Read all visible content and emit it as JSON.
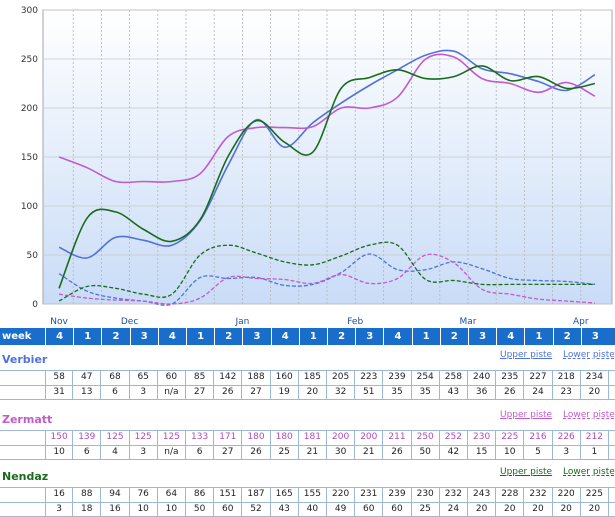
{
  "chart_data": {
    "type": "line",
    "ylim": [
      0,
      300
    ],
    "yticks": [
      "0",
      "50",
      "100",
      "150",
      "200",
      "250",
      "300"
    ],
    "grid": true,
    "months": [
      {
        "label": "Nov",
        "col": 0
      },
      {
        "label": "Dec",
        "col": 2.5
      },
      {
        "label": "Jan",
        "col": 6.5
      },
      {
        "label": "Feb",
        "col": 10.5
      },
      {
        "label": "Mar",
        "col": 14.5
      },
      {
        "label": "Apr",
        "col": 18.5
      }
    ],
    "week_label": "week",
    "weeks": [
      "4",
      "1",
      "2",
      "3",
      "4",
      "1",
      "2",
      "3",
      "4",
      "1",
      "2",
      "3",
      "4",
      "1",
      "2",
      "3",
      "4",
      "1",
      "2",
      "3"
    ],
    "series": [
      {
        "resort": "Verbier",
        "kind": "upper",
        "color": "#4f72d9",
        "values": [
          58,
          47,
          68,
          65,
          60,
          85,
          142,
          188,
          160,
          185,
          205,
          223,
          239,
          254,
          258,
          240,
          235,
          227,
          218,
          234
        ]
      },
      {
        "resort": "Verbier",
        "kind": "lower",
        "color": "#4f72d9",
        "values": [
          31,
          13,
          6,
          3,
          null,
          27,
          26,
          27,
          19,
          20,
          32,
          51,
          35,
          35,
          43,
          36,
          26,
          24,
          23,
          20
        ]
      },
      {
        "resort": "Zermatt",
        "kind": "upper",
        "color": "#c25bcc",
        "values": [
          150,
          139,
          125,
          125,
          125,
          133,
          171,
          180,
          180,
          181,
          200,
          200,
          211,
          250,
          252,
          230,
          225,
          216,
          226,
          212
        ]
      },
      {
        "resort": "Zermatt",
        "kind": "lower",
        "color": "#c25bcc",
        "values": [
          10,
          6,
          4,
          3,
          null,
          6,
          27,
          26,
          25,
          21,
          30,
          21,
          26,
          50,
          42,
          15,
          10,
          5,
          3,
          1
        ]
      },
      {
        "resort": "Nendaz",
        "kind": "upper",
        "color": "#1a6b1a",
        "values": [
          16,
          88,
          94,
          76,
          64,
          86,
          151,
          187,
          165,
          155,
          220,
          231,
          239,
          230,
          232,
          243,
          228,
          232,
          220,
          225
        ]
      },
      {
        "resort": "Nendaz",
        "kind": "lower",
        "color": "#1a6b1a",
        "values": [
          3,
          18,
          16,
          10,
          10,
          50,
          60,
          52,
          43,
          40,
          49,
          60,
          60,
          25,
          24,
          20,
          20,
          20,
          20,
          20
        ]
      }
    ]
  },
  "table": {
    "resorts": [
      {
        "name": "Verbier",
        "color": "#4f72d9",
        "upper_label": "Upper piste",
        "lower_label": "Lower piste",
        "upper": [
          "58",
          "47",
          "68",
          "65",
          "60",
          "85",
          "142",
          "188",
          "160",
          "185",
          "205",
          "223",
          "239",
          "254",
          "258",
          "240",
          "235",
          "227",
          "218",
          "234"
        ],
        "lower": [
          "31",
          "13",
          "6",
          "3",
          "n/a",
          "27",
          "26",
          "27",
          "19",
          "20",
          "32",
          "51",
          "35",
          "35",
          "43",
          "36",
          "26",
          "24",
          "23",
          "20"
        ]
      },
      {
        "name": "Zermatt",
        "color": "#c25bcc",
        "upper_label": "Upper piste",
        "lower_label": "Lower piste",
        "upper": [
          "150",
          "139",
          "125",
          "125",
          "125",
          "133",
          "171",
          "180",
          "180",
          "181",
          "200",
          "200",
          "211",
          "250",
          "252",
          "230",
          "225",
          "216",
          "226",
          "212"
        ],
        "lower": [
          "10",
          "6",
          "4",
          "3",
          "n/a",
          "6",
          "27",
          "26",
          "25",
          "21",
          "30",
          "21",
          "26",
          "50",
          "42",
          "15",
          "10",
          "5",
          "3",
          "1"
        ]
      },
      {
        "name": "Nendaz",
        "color": "#1a6b1a",
        "upper_label": "Upper piste",
        "lower_label": "Lower piste",
        "upper": [
          "16",
          "88",
          "94",
          "76",
          "64",
          "86",
          "151",
          "187",
          "165",
          "155",
          "220",
          "231",
          "239",
          "230",
          "232",
          "243",
          "228",
          "232",
          "220",
          "225"
        ],
        "lower": [
          "3",
          "18",
          "16",
          "10",
          "10",
          "50",
          "60",
          "52",
          "43",
          "40",
          "49",
          "60",
          "60",
          "25",
          "24",
          "20",
          "20",
          "20",
          "20",
          "20"
        ]
      }
    ]
  }
}
